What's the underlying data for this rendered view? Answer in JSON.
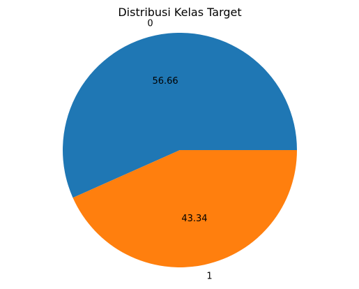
{
  "chart_data": {
    "type": "pie",
    "title": "Distribusi Kelas Target",
    "start_angle_deg": 0,
    "direction": "counterclockwise",
    "slices": [
      {
        "label": "0",
        "value": 56.66,
        "value_label": "56.66",
        "color": "#1f77b4"
      },
      {
        "label": "1",
        "value": 43.34,
        "value_label": "43.34",
        "color": "#ff7f0e"
      }
    ]
  }
}
